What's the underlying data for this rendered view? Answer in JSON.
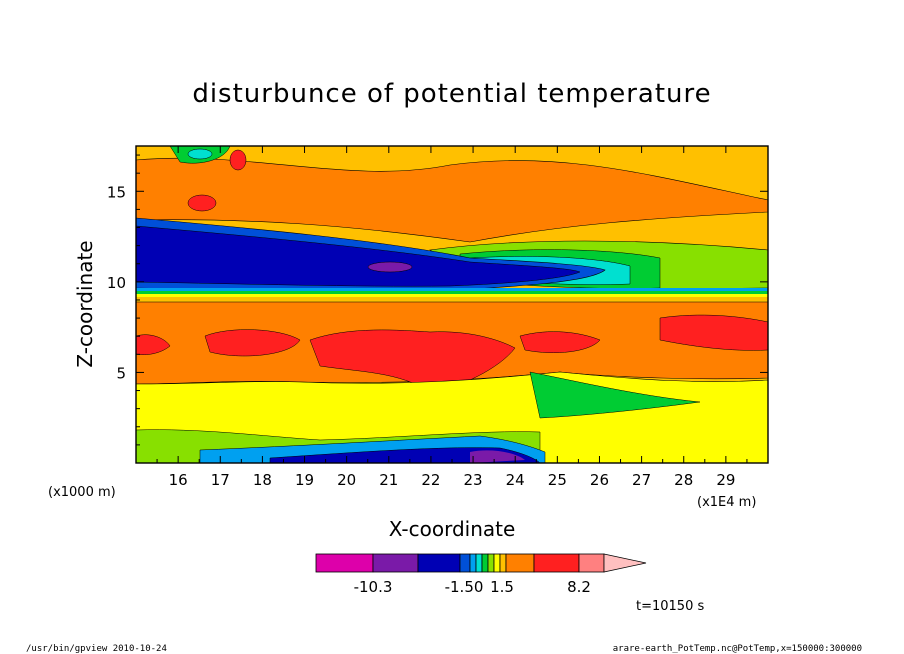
{
  "chart_data": {
    "type": "heatmap",
    "title": "disturbunce of potential temperature",
    "xlabel": "X-coordinate",
    "ylabel": "Z-coordinate",
    "x_unit": "(x1E4 m)",
    "y_unit": "(x1000 m)",
    "xlim": [
      15,
      30
    ],
    "ylim": [
      0,
      17.5
    ],
    "x_ticks": [
      "16",
      "17",
      "18",
      "19",
      "20",
      "21",
      "22",
      "23",
      "24",
      "25",
      "26",
      "27",
      "28",
      "29"
    ],
    "y_ticks": [
      "5",
      "10",
      "15"
    ],
    "colorbar": {
      "colors": [
        "#dd00aa",
        "#7a1aa8",
        "#0000b4",
        "#0050d8",
        "#00a0f0",
        "#00e0d0",
        "#00cc33",
        "#88e000",
        "#ffff00",
        "#ffc000",
        "#ff8000",
        "#ff2020",
        "#ff8080",
        "#ffc0c0"
      ],
      "labels": [
        "-10.3",
        "-1.50",
        "1.5",
        "8.2"
      ]
    },
    "time_label": "t=10150 s"
  },
  "footer": {
    "left": "/usr/bin/gpview   2010-10-24",
    "right": "arare-earth_PotTemp.nc@PotTemp,x=150000:300000"
  }
}
